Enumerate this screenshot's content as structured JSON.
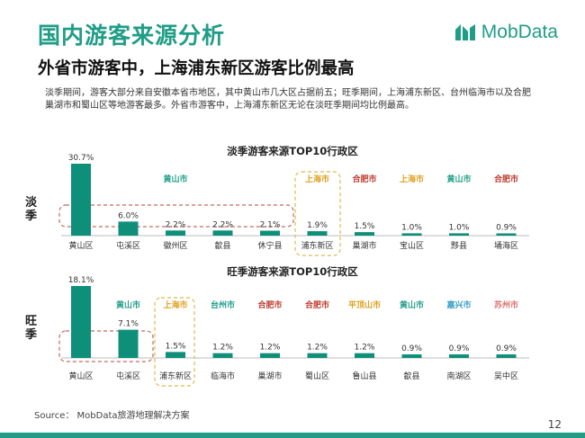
{
  "header": {
    "title": "国内游客来源分析",
    "logo_text": "MobData",
    "subtitle": "外省市游客中，上海浦东新区游客比例最高",
    "description": "淡季期间，游客大部分来自安徽本省市地区，其中黄山市几大区占据前五；旺季期间，上海浦东新区、台州临海市以及合肥巢湖市和蜀山区等地游客最多。外省市游客中，上海浦东新区无论在淡旺季期间均比例最高。"
  },
  "season_labels": {
    "off": "淡季",
    "peak": "旺季"
  },
  "footer": {
    "source": "Source：  MobData旅游地理解决方案",
    "page": "12"
  },
  "colors": {
    "bar": "#0e8f7a",
    "accent": "#1f9d86",
    "dash_red": "#c46a5e",
    "dash_yellow": "#e0b84a"
  },
  "chart_data": [
    {
      "type": "bar",
      "title": "淡季游客来源TOP10行政区",
      "categories": [
        "黄山区",
        "屯溪区",
        "徽州区",
        "歙县",
        "休宁县",
        "浦东新区",
        "巢湖市",
        "宝山区",
        "黟县",
        "埇海区"
      ],
      "values": [
        30.7,
        6.0,
        2.2,
        2.2,
        2.1,
        1.9,
        1.5,
        1.0,
        1.0,
        0.9
      ],
      "value_labels": [
        "30.7%",
        "6.0%",
        "2.2%",
        "2.2%",
        "2.1%",
        "1.9%",
        "1.5%",
        "1.0%",
        "1.0%",
        "0.9%"
      ],
      "city_tags": [
        {
          "index": 2,
          "text": "黄山市",
          "color": "#1f9d86"
        },
        {
          "index": 5,
          "text": "上海市",
          "color": "#e0a020"
        },
        {
          "index": 6,
          "text": "合肥市",
          "color": "#c0392b"
        },
        {
          "index": 7,
          "text": "上海市",
          "color": "#e0a020"
        },
        {
          "index": 8,
          "text": "黄山市",
          "color": "#1f9d86"
        },
        {
          "index": 9,
          "text": "合肥市",
          "color": "#c0392b"
        }
      ]
    },
    {
      "type": "bar",
      "title": "旺季游客来源TOP10行政区",
      "categories": [
        "黄山区",
        "屯溪区",
        "浦东新区",
        "临海市",
        "巢湖市",
        "蜀山区",
        "鲁山县",
        "歙县",
        "南湖区",
        "吴中区"
      ],
      "values": [
        18.1,
        7.1,
        1.5,
        1.2,
        1.2,
        1.2,
        1.2,
        0.9,
        0.9,
        0.9
      ],
      "value_labels": [
        "18.1%",
        "7.1%",
        "1.5%",
        "1.2%",
        "1.2%",
        "1.2%",
        "1.2%",
        "0.9%",
        "0.9%",
        "0.9%"
      ],
      "city_tags": [
        {
          "index": 1,
          "text": "黄山市",
          "color": "#1f9d86"
        },
        {
          "index": 2,
          "text": "上海市",
          "color": "#e0a020"
        },
        {
          "index": 3,
          "text": "台州市",
          "color": "#1f9d86"
        },
        {
          "index": 4,
          "text": "合肥市",
          "color": "#c0392b"
        },
        {
          "index": 5,
          "text": "合肥市",
          "color": "#c0392b"
        },
        {
          "index": 6,
          "text": "平顶山市",
          "color": "#e0a020"
        },
        {
          "index": 7,
          "text": "黄山市",
          "color": "#1f9d86"
        },
        {
          "index": 8,
          "text": "嘉兴市",
          "color": "#3aa0c8"
        },
        {
          "index": 9,
          "text": "苏州市",
          "color": "#e07070"
        }
      ]
    }
  ]
}
